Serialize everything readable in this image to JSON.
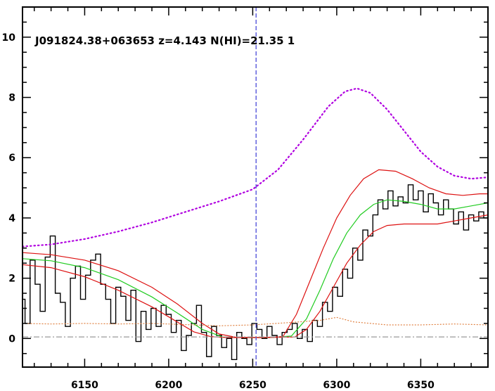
{
  "chart_data": {
    "type": "line",
    "title": "J091824.38+063653 z=4.143 N(HI)=21.35 1",
    "xlabel": "",
    "ylabel": "",
    "xlim": [
      6113,
      6390
    ],
    "ylim": [
      -0.95,
      11
    ],
    "x_ticks": [
      6150,
      6200,
      6250,
      6300,
      6350
    ],
    "y_ticks": [
      0,
      2,
      4,
      6,
      8,
      10
    ],
    "grid": false,
    "reference_lines": [
      {
        "name": "absorber center",
        "orientation": "vertical",
        "value": 6252,
        "style": "dashed",
        "color": "#3b3bd6"
      },
      {
        "name": "zero level",
        "orientation": "horizontal",
        "value": 0.05,
        "style": "dash-dot",
        "color": "#9a9a9a"
      }
    ],
    "series": [
      {
        "key": "flux",
        "style": "step",
        "color": "#000000",
        "x": [
          6113,
          6116,
          6119,
          6122,
          6125,
          6128,
          6131,
          6134,
          6137,
          6140,
          6143,
          6146,
          6149,
          6152,
          6155,
          6158,
          6161,
          6164,
          6167,
          6170,
          6173,
          6176,
          6179,
          6182,
          6185,
          6188,
          6191,
          6194,
          6197,
          6200,
          6203,
          6206,
          6209,
          6212,
          6215,
          6218,
          6221,
          6224,
          6227,
          6230,
          6233,
          6236,
          6239,
          6242,
          6245,
          6248,
          6251,
          6254,
          6257,
          6260,
          6263,
          6266,
          6269,
          6272,
          6275,
          6278,
          6281,
          6284,
          6287,
          6290,
          6293,
          6296,
          6299,
          6302,
          6305,
          6308,
          6311,
          6314,
          6317,
          6320,
          6323,
          6326,
          6329,
          6332,
          6335,
          6338,
          6341,
          6344,
          6347,
          6350,
          6353,
          6356,
          6359,
          6362,
          6365,
          6368,
          6371,
          6374,
          6377,
          6380,
          6383,
          6386,
          6389
        ],
        "y": [
          1.3,
          0.5,
          2.6,
          1.8,
          0.9,
          2.7,
          3.4,
          1.5,
          1.2,
          0.4,
          2.0,
          2.4,
          1.3,
          2.1,
          2.6,
          2.8,
          1.8,
          1.3,
          0.5,
          1.7,
          1.4,
          0.6,
          1.6,
          -0.1,
          0.9,
          0.3,
          1.0,
          0.4,
          1.1,
          0.8,
          0.2,
          0.6,
          -0.4,
          0.1,
          0.5,
          1.1,
          0.2,
          -0.6,
          0.4,
          0.1,
          -0.3,
          0.0,
          -0.7,
          0.2,
          0.0,
          -0.2,
          0.5,
          0.3,
          0.0,
          0.4,
          0.1,
          -0.2,
          0.2,
          0.3,
          0.5,
          0.0,
          0.3,
          -0.1,
          0.6,
          0.4,
          1.2,
          0.9,
          1.7,
          1.4,
          2.3,
          2.0,
          3.0,
          2.6,
          3.6,
          3.4,
          4.1,
          4.6,
          4.3,
          4.9,
          4.4,
          4.7,
          4.5,
          5.1,
          4.6,
          4.9,
          4.2,
          4.8,
          4.5,
          4.1,
          4.6,
          4.3,
          3.8,
          4.2,
          3.6,
          4.1,
          3.9,
          4.2,
          4.0
        ]
      },
      {
        "key": "model",
        "style": "line",
        "color": "#22cc22",
        "x": [
          6113,
          6130,
          6150,
          6170,
          6190,
          6205,
          6220,
          6232,
          6245,
          6260,
          6273,
          6282,
          6290,
          6298,
          6306,
          6314,
          6322,
          6330,
          6340,
          6350,
          6360,
          6370,
          6380,
          6390
        ],
        "y": [
          2.65,
          2.58,
          2.35,
          1.95,
          1.38,
          0.85,
          0.3,
          0.05,
          0.03,
          0.03,
          0.08,
          0.65,
          1.6,
          2.65,
          3.5,
          4.1,
          4.45,
          4.6,
          4.55,
          4.45,
          4.3,
          4.3,
          4.4,
          4.5
        ]
      },
      {
        "key": "model upper",
        "style": "line",
        "color": "#dd1111",
        "x": [
          6113,
          6130,
          6150,
          6170,
          6190,
          6205,
          6220,
          6230,
          6240,
          6255,
          6268,
          6276,
          6284,
          6292,
          6300,
          6308,
          6316,
          6325,
          6335,
          6345,
          6355,
          6365,
          6375,
          6385,
          6390
        ],
        "y": [
          2.85,
          2.78,
          2.6,
          2.25,
          1.7,
          1.15,
          0.5,
          0.15,
          0.04,
          0.03,
          0.06,
          0.8,
          1.9,
          3.0,
          4.0,
          4.75,
          5.3,
          5.6,
          5.55,
          5.3,
          5.0,
          4.8,
          4.75,
          4.8,
          4.8
        ]
      },
      {
        "key": "model lower",
        "style": "line",
        "color": "#dd1111",
        "x": [
          6113,
          6130,
          6150,
          6170,
          6190,
          6205,
          6215,
          6225,
          6235,
          6255,
          6275,
          6282,
          6290,
          6298,
          6306,
          6314,
          6322,
          6330,
          6340,
          6350,
          6360,
          6370,
          6380,
          6390
        ],
        "y": [
          2.45,
          2.35,
          2.05,
          1.6,
          1.05,
          0.55,
          0.22,
          0.06,
          0.03,
          0.03,
          0.05,
          0.3,
          0.9,
          1.7,
          2.5,
          3.1,
          3.55,
          3.75,
          3.8,
          3.8,
          3.8,
          3.9,
          4.0,
          4.1
        ]
      },
      {
        "key": "continuum",
        "style": "dotted",
        "color": "#b000e0",
        "x": [
          6113,
          6130,
          6150,
          6170,
          6190,
          6210,
          6230,
          6250,
          6265,
          6280,
          6295,
          6305,
          6312,
          6320,
          6330,
          6340,
          6350,
          6360,
          6370,
          6380,
          6390
        ],
        "y": [
          3.05,
          3.12,
          3.3,
          3.55,
          3.85,
          4.2,
          4.55,
          4.95,
          5.6,
          6.6,
          7.7,
          8.2,
          8.3,
          8.15,
          7.6,
          6.9,
          6.2,
          5.7,
          5.4,
          5.3,
          5.35
        ]
      },
      {
        "key": "error",
        "style": "dotted",
        "color": "#e08040",
        "x": [
          6113,
          6130,
          6150,
          6170,
          6190,
          6210,
          6230,
          6250,
          6270,
          6290,
          6300,
          6310,
          6330,
          6350,
          6370,
          6390
        ],
        "y": [
          0.5,
          0.48,
          0.5,
          0.48,
          0.5,
          0.46,
          0.42,
          0.45,
          0.52,
          0.6,
          0.7,
          0.55,
          0.45,
          0.45,
          0.48,
          0.45
        ]
      }
    ]
  }
}
